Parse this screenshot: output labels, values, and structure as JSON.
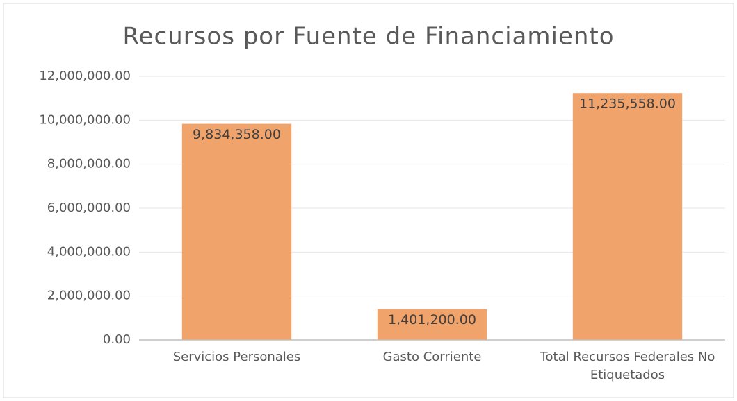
{
  "chart_data": {
    "type": "bar",
    "title": "Recursos por Fuente de Financiamiento",
    "categories": [
      "Servicios Personales",
      "Gasto Corriente",
      "Total Recursos Federales No Etiquetados"
    ],
    "values": [
      9834358,
      1401200,
      11235558
    ],
    "value_labels": [
      "9,834,358.00",
      "1,401,200.00",
      "11,235,558.00"
    ],
    "color": "#f0a46c",
    "ylim": [
      0,
      12000000
    ],
    "yticks": [
      {
        "value": 0,
        "label": "0.00"
      },
      {
        "value": 2000000,
        "label": "2,000,000.00"
      },
      {
        "value": 4000000,
        "label": "4,000,000.00"
      },
      {
        "value": 6000000,
        "label": "6,000,000.00"
      },
      {
        "value": 8000000,
        "label": "8,000,000.00"
      },
      {
        "value": 10000000,
        "label": "10,000,000.00"
      },
      {
        "value": 12000000,
        "label": "12,000,000.00"
      }
    ],
    "grid": true
  }
}
